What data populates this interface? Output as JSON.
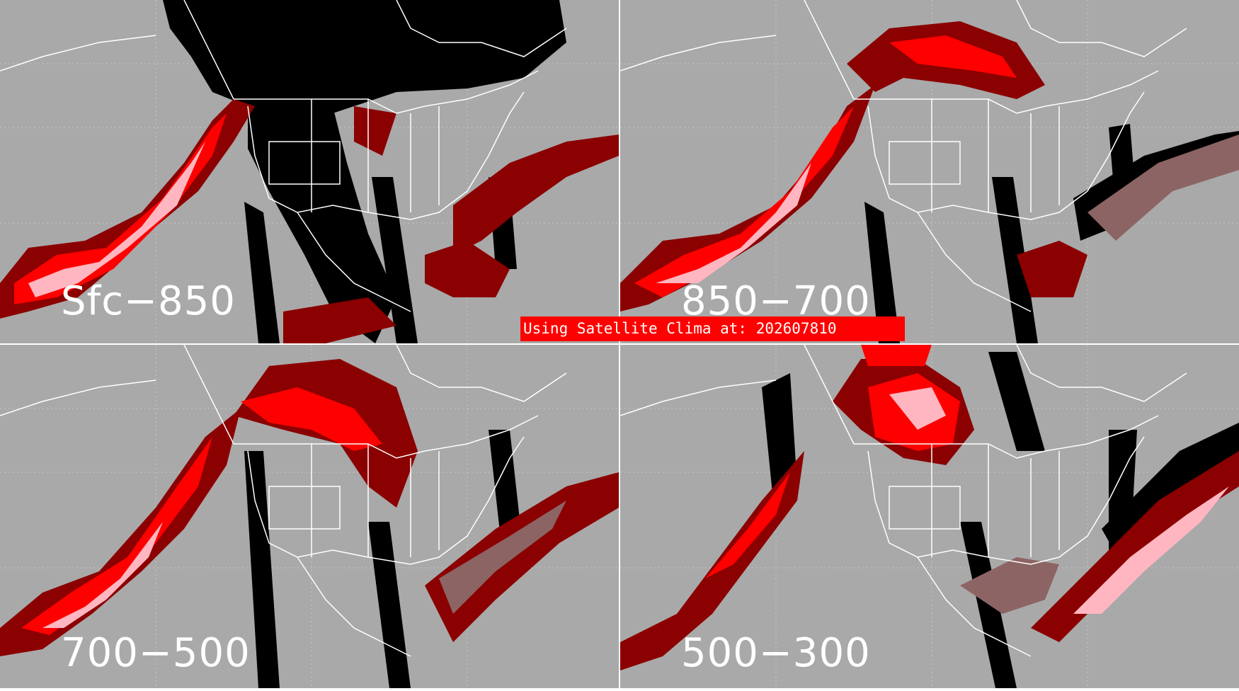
{
  "panels": [
    {
      "label": "Sfc−850"
    },
    {
      "label": "850−700"
    },
    {
      "label": "700−500"
    },
    {
      "label": "500−300"
    }
  ],
  "banner": {
    "text": "Using Satellite Clima at: 202607810"
  },
  "colors": {
    "background": "#a9a9a9",
    "no_data": "#000000",
    "dark_red": "#8b0000",
    "red": "#ff0000",
    "pink": "#ffb6c1",
    "brownish": "#8c6464",
    "border_lines": "#ffffff",
    "banner": "#ff0000"
  }
}
